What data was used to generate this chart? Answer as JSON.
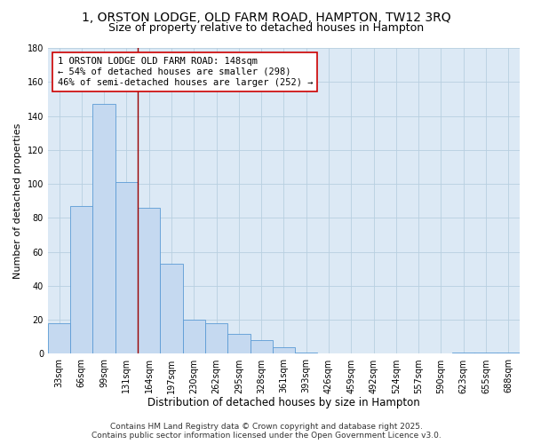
{
  "title": "1, ORSTON LODGE, OLD FARM ROAD, HAMPTON, TW12 3RQ",
  "subtitle": "Size of property relative to detached houses in Hampton",
  "xlabel": "Distribution of detached houses by size in Hampton",
  "ylabel": "Number of detached properties",
  "categories": [
    "33sqm",
    "66sqm",
    "99sqm",
    "131sqm",
    "164sqm",
    "197sqm",
    "230sqm",
    "262sqm",
    "295sqm",
    "328sqm",
    "361sqm",
    "393sqm",
    "426sqm",
    "459sqm",
    "492sqm",
    "524sqm",
    "557sqm",
    "590sqm",
    "623sqm",
    "655sqm",
    "688sqm"
  ],
  "values": [
    18,
    87,
    147,
    101,
    86,
    53,
    20,
    18,
    12,
    8,
    4,
    1,
    0,
    0,
    0,
    0,
    0,
    0,
    1,
    1,
    1
  ],
  "bar_color": "#c5d9f0",
  "bar_edge_color": "#5b9bd5",
  "grid_color": "#b8cfe0",
  "bg_color": "#dce9f5",
  "vline_color": "#990000",
  "vline_x": 3.5,
  "annotation_text": "1 ORSTON LODGE OLD FARM ROAD: 148sqm\n← 54% of detached houses are smaller (298)\n46% of semi-detached houses are larger (252) →",
  "annotation_box_color": "#ffffff",
  "annotation_box_edge": "#cc0000",
  "ylim": [
    0,
    180
  ],
  "yticks": [
    0,
    20,
    40,
    60,
    80,
    100,
    120,
    140,
    160,
    180
  ],
  "footer": "Contains HM Land Registry data © Crown copyright and database right 2025.\nContains public sector information licensed under the Open Government Licence v3.0.",
  "title_fontsize": 10,
  "subtitle_fontsize": 9,
  "xlabel_fontsize": 8.5,
  "ylabel_fontsize": 8,
  "tick_fontsize": 7,
  "annotation_fontsize": 7.5,
  "footer_fontsize": 6.5
}
